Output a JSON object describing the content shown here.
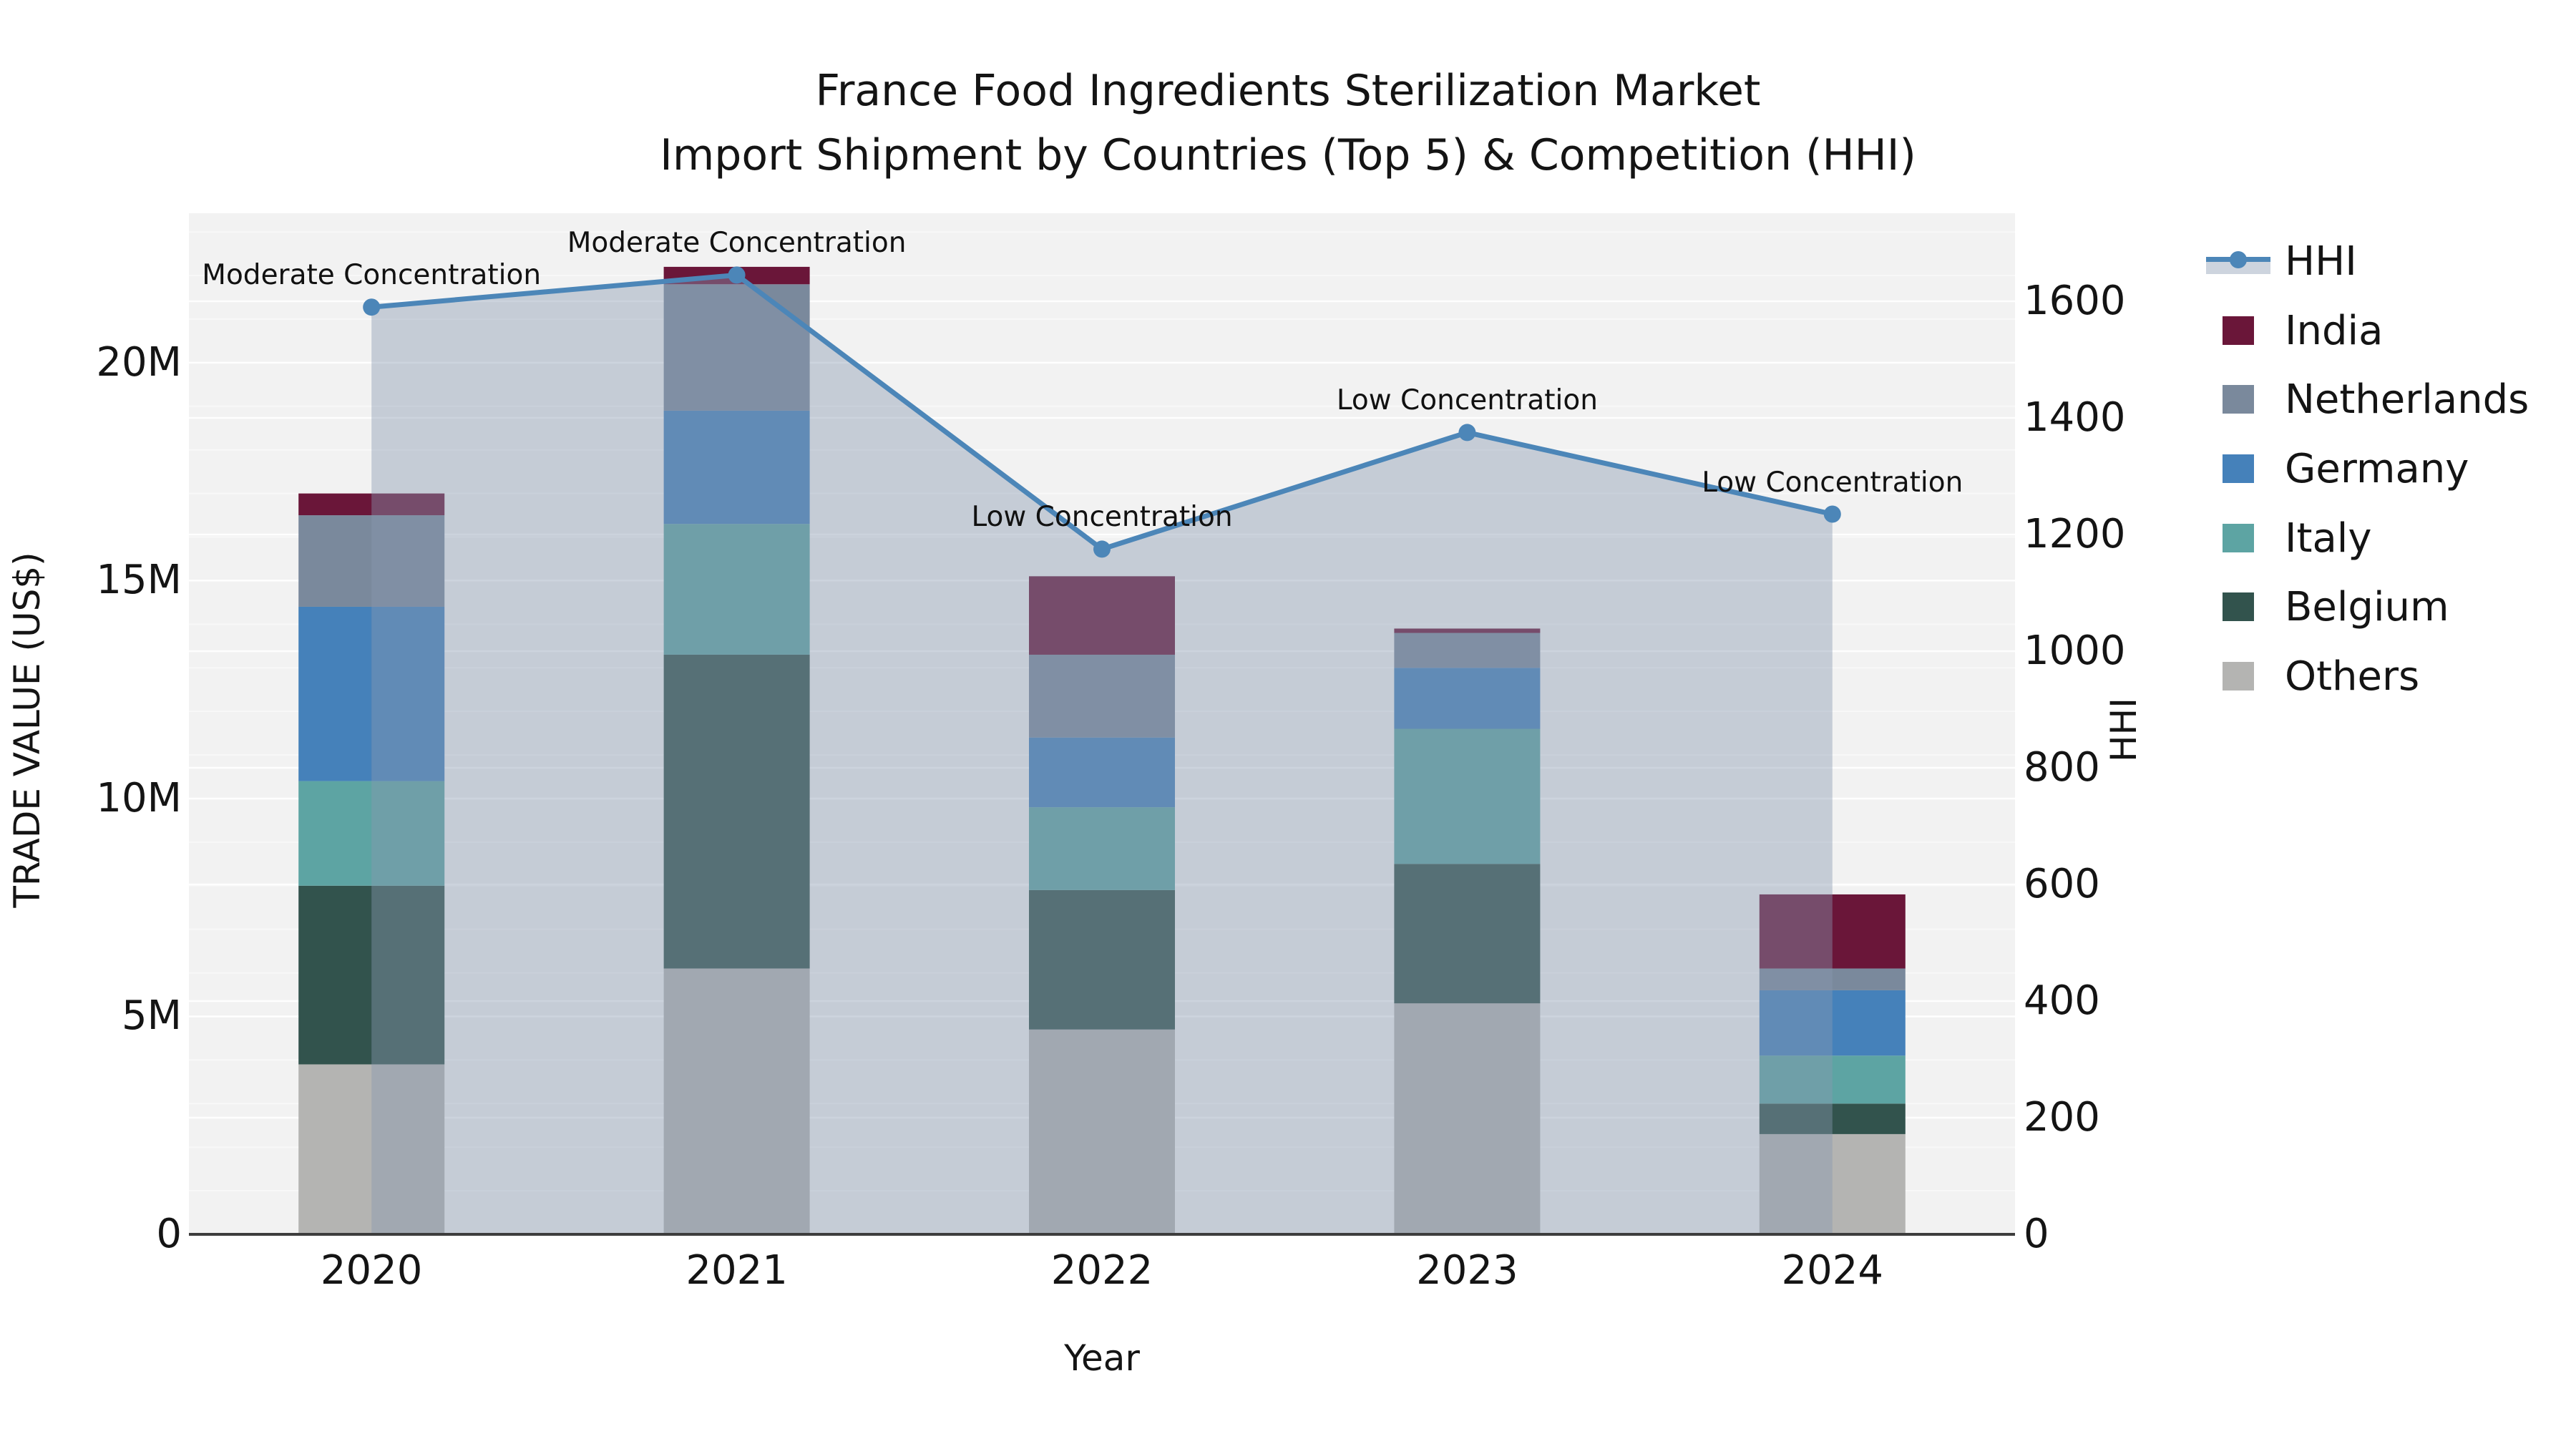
{
  "title": {
    "line1": "France Food Ingredients Sterilization Market",
    "line2": "Import Shipment by Countries (Top 5) & Competition (HHI)"
  },
  "axes": {
    "x_label": "Year",
    "left_label": "TRADE VALUE (US$)",
    "right_label": "HHI",
    "left_ticks": [
      "0",
      "5M",
      "10M",
      "15M",
      "20M"
    ],
    "right_ticks": [
      "0",
      "200",
      "400",
      "600",
      "800",
      "1000",
      "1200",
      "1400",
      "1600"
    ],
    "x_ticks": [
      "2020",
      "2021",
      "2022",
      "2023",
      "2024"
    ]
  },
  "legend": {
    "items": [
      {
        "label": "HHI",
        "type": "line",
        "color": "#4c86b8"
      },
      {
        "label": "India",
        "type": "swatch",
        "color": "#6a1639"
      },
      {
        "label": "Netherlands",
        "type": "swatch",
        "color": "#7a899c"
      },
      {
        "label": "Germany",
        "type": "swatch",
        "color": "#4581ba"
      },
      {
        "label": "Italy",
        "type": "swatch",
        "color": "#5da4a3"
      },
      {
        "label": "Belgium",
        "type": "swatch",
        "color": "#32534d"
      },
      {
        "label": "Others",
        "type": "swatch",
        "color": "#b4b4b2"
      }
    ]
  },
  "colors": {
    "plot_background": "#f2f2f2",
    "gridline": "#ffffff",
    "axis_spine": "#3d3d3d",
    "hhi_line": "#4c86b8",
    "hhi_area_fill": "rgba(137,152,177,0.42)",
    "text": "#141414"
  },
  "chart_data": {
    "type": "bar",
    "subtype": "stacked-bars-with-line-overlay",
    "title": "France Food Ingredients Sterilization Market — Import Shipment by Countries (Top 5) & Competition (HHI)",
    "categories": [
      "2020",
      "2021",
      "2022",
      "2023",
      "2024"
    ],
    "value_unit": "US$ million (trade value), index points (HHI)",
    "series": [
      {
        "name": "Others",
        "color": "#b4b4b2",
        "values": [
          3.9,
          6.1,
          4.7,
          5.3,
          2.3
        ]
      },
      {
        "name": "Belgium",
        "color": "#32534d",
        "values": [
          4.1,
          7.2,
          3.2,
          3.2,
          0.7
        ]
      },
      {
        "name": "Italy",
        "color": "#5da4a3",
        "values": [
          2.4,
          3.0,
          1.9,
          3.1,
          1.1
        ]
      },
      {
        "name": "Germany",
        "color": "#4581ba",
        "values": [
          4.0,
          2.6,
          1.6,
          1.4,
          1.5
        ]
      },
      {
        "name": "Netherlands",
        "color": "#7a899c",
        "values": [
          2.1,
          2.9,
          1.9,
          0.8,
          0.5
        ]
      },
      {
        "name": "India",
        "color": "#6a1639",
        "values": [
          0.5,
          0.4,
          1.8,
          0.1,
          1.7
        ]
      }
    ],
    "stack_totals_M": [
      17.0,
      22.2,
      15.1,
      13.9,
      7.8
    ],
    "line_series": {
      "name": "HHI",
      "axis": "right",
      "color": "#4c86b8",
      "area_fill": "rgba(137,152,177,0.42)",
      "values": [
        1590,
        1645,
        1175,
        1375,
        1235
      ]
    },
    "annotations": [
      {
        "category": "2020",
        "text": "Moderate Concentration"
      },
      {
        "category": "2021",
        "text": "Moderate Concentration"
      },
      {
        "category": "2022",
        "text": "Low Concentration"
      },
      {
        "category": "2023",
        "text": "Low Concentration"
      },
      {
        "category": "2024",
        "text": "Low Concentration"
      }
    ],
    "xlabel": "Year",
    "ylabel_left": "TRADE VALUE (US$)",
    "ylabel_right": "HHI",
    "ylim_left_M": [
      0,
      23.43
    ],
    "ylim_right": [
      0,
      1751
    ],
    "left_tick_values_M": [
      0,
      5,
      10,
      15,
      20
    ],
    "right_tick_values": [
      0,
      200,
      400,
      600,
      800,
      1000,
      1200,
      1400,
      1600
    ],
    "grid": true,
    "legend_position": "right-outside"
  }
}
